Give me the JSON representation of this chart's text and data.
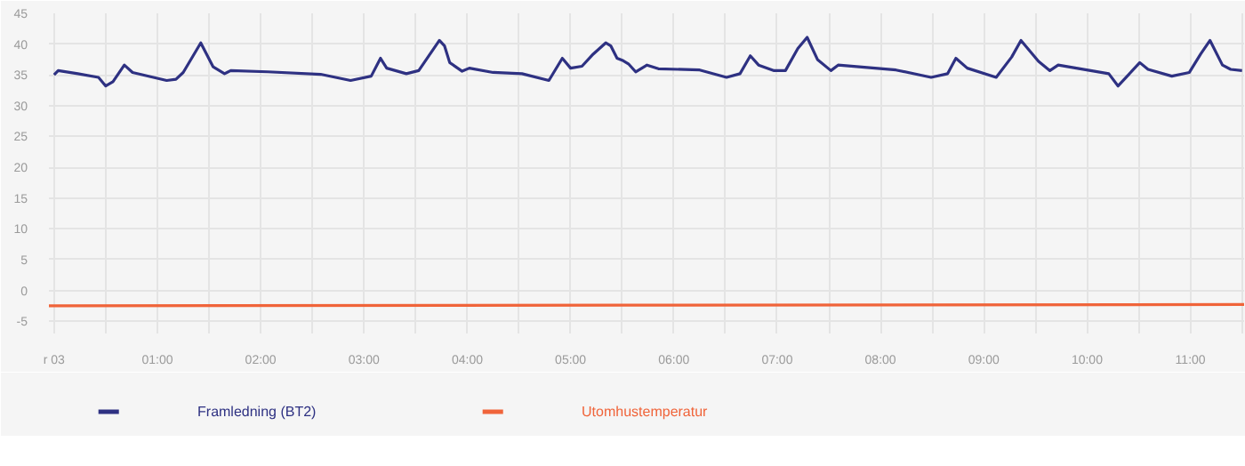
{
  "chart_data": {
    "type": "line",
    "xlim": [
      -0.05,
      11.52
    ],
    "ylim": [
      -7,
      45
    ],
    "xticks": [
      {
        "value": 0,
        "label": "r 03"
      },
      {
        "value": 1,
        "label": "01:00"
      },
      {
        "value": 2,
        "label": "02:00"
      },
      {
        "value": 3,
        "label": "03:00"
      },
      {
        "value": 4,
        "label": "04:00"
      },
      {
        "value": 5,
        "label": "05:00"
      },
      {
        "value": 6,
        "label": "06:00"
      },
      {
        "value": 7,
        "label": "07:00"
      },
      {
        "value": 8,
        "label": "08:00"
      },
      {
        "value": 9,
        "label": "09:00"
      },
      {
        "value": 10,
        "label": "10:00"
      },
      {
        "value": 11,
        "label": "11:00"
      }
    ],
    "yticks": [
      -5,
      0,
      5,
      10,
      15,
      20,
      25,
      30,
      35,
      40,
      45
    ],
    "grid": true,
    "legend": "bottom left",
    "marker": "none",
    "line_style": "solid",
    "series": [
      {
        "name": "Framledning (BT2)",
        "color": "#2e3182",
        "x": [
          0,
          0.04,
          0.23,
          0.43,
          0.5,
          0.57,
          0.68,
          0.76,
          1.09,
          1.18,
          1.25,
          1.42,
          1.54,
          1.65,
          1.71,
          2.07,
          2.58,
          2.87,
          3.07,
          3.16,
          3.22,
          3.41,
          3.53,
          3.73,
          3.78,
          3.83,
          3.95,
          4.02,
          4.25,
          4.53,
          4.79,
          4.92,
          5.0,
          5.11,
          5.22,
          5.34,
          5.39,
          5.45,
          5.51,
          5.56,
          5.63,
          5.74,
          5.85,
          6.25,
          6.51,
          6.64,
          6.74,
          6.82,
          6.97,
          7.08,
          7.2,
          7.29,
          7.39,
          7.52,
          7.59,
          8.15,
          8.49,
          8.65,
          8.73,
          8.84,
          9.12,
          9.27,
          9.36,
          9.53,
          9.64,
          9.72,
          10.21,
          10.3,
          10.51,
          10.59,
          10.82,
          10.99,
          11.1,
          11.19,
          11.31,
          11.39,
          11.5
        ],
        "values": [
          35.0,
          35.7,
          35.2,
          34.6,
          33.2,
          33.9,
          36.6,
          35.4,
          34.1,
          34.3,
          35.4,
          40.2,
          36.3,
          35.2,
          35.7,
          35.5,
          35.1,
          34.1,
          34.8,
          37.7,
          36.1,
          35.2,
          35.7,
          40.6,
          39.7,
          37.0,
          35.6,
          36.1,
          35.4,
          35.2,
          34.1,
          37.7,
          36.1,
          36.4,
          38.4,
          40.2,
          39.7,
          37.7,
          37.3,
          36.8,
          35.5,
          36.6,
          36.0,
          35.8,
          34.6,
          35.2,
          38.1,
          36.6,
          35.7,
          35.7,
          39.3,
          41.1,
          37.5,
          35.7,
          36.6,
          35.8,
          34.6,
          35.2,
          37.7,
          36.1,
          34.6,
          37.9,
          40.6,
          37.2,
          35.7,
          36.6,
          35.2,
          33.2,
          37.0,
          35.9,
          34.8,
          35.4,
          38.4,
          40.6,
          36.6,
          35.9,
          35.7
        ]
      },
      {
        "name": "Utomhustemperatur",
        "color": "#f0643a",
        "x": [
          -0.05,
          5.5,
          11.52
        ],
        "values": [
          -2.5,
          -2.4,
          -2.3
        ]
      }
    ]
  }
}
